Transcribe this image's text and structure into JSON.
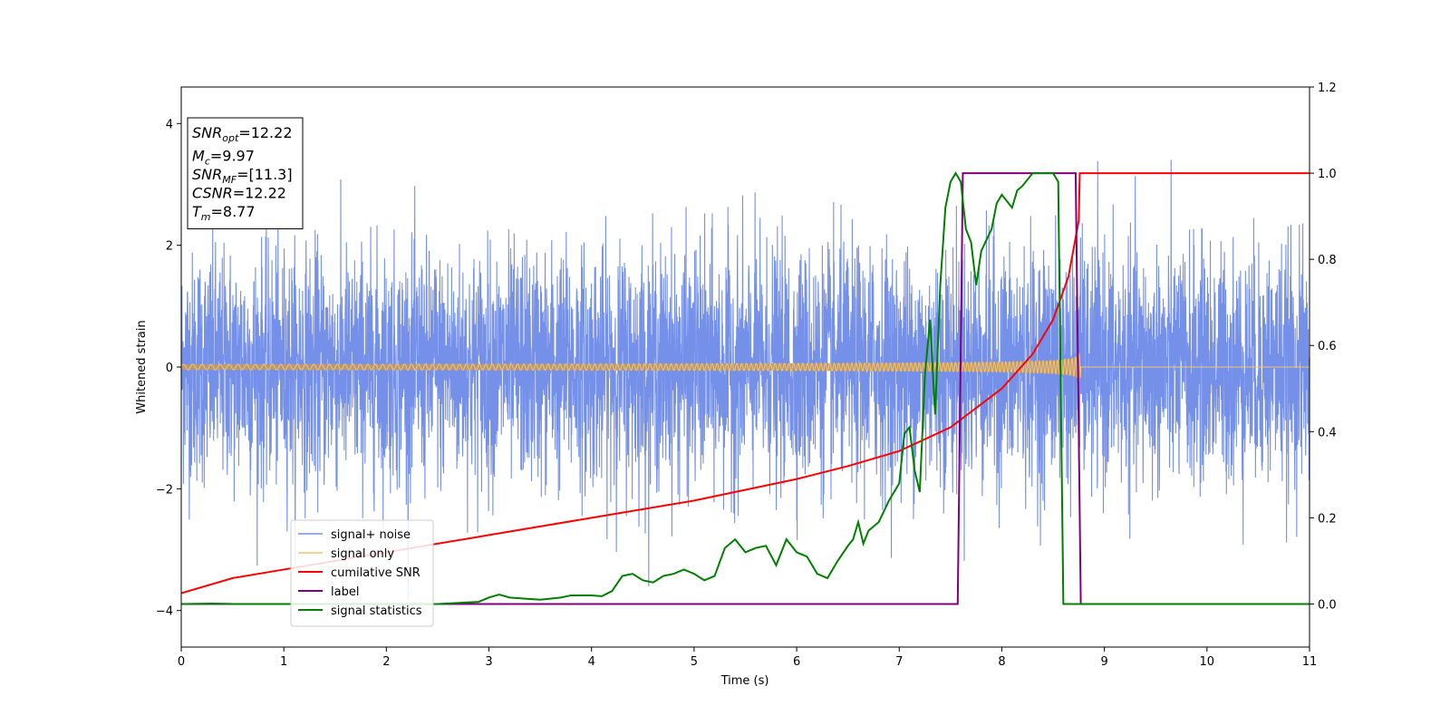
{
  "chart_data": {
    "type": "line",
    "xlabel": "Time (s)",
    "ylabel": "Whitened strain",
    "xlim": [
      0,
      11
    ],
    "ylim": [
      -4.6,
      4.6
    ],
    "y2lim": [
      -0.1,
      1.2
    ],
    "x_ticks": [
      "0",
      "1",
      "2",
      "3",
      "4",
      "5",
      "6",
      "7",
      "8",
      "9",
      "10",
      "11"
    ],
    "y_ticks": [
      "4",
      "2",
      "0",
      "−2",
      "−4"
    ],
    "y2_ticks": [
      "1.2",
      "1.0",
      "0.8",
      "0.6",
      "0.4",
      "0.2",
      "0.0"
    ],
    "grid": false,
    "legend_position": "lower-left",
    "annotation_lines": [
      {
        "base": "SNR",
        "sub": "opt",
        "value": "=12.22"
      },
      {
        "base": "M",
        "sub": "c",
        "value": "=9.97"
      },
      {
        "base": "SNR",
        "sub": "MF",
        "value": "=[11.3]"
      },
      {
        "base": "CSNR",
        "sub": "",
        "value": "=12.22"
      },
      {
        "base": "T",
        "sub": "m",
        "value": "=8.77"
      }
    ],
    "series": [
      {
        "name": "signal+ noise",
        "color": "#7590e8",
        "axis": "left",
        "kind": "noise",
        "noise_std": 0.95,
        "noise_max_abs": 4.2,
        "x_range": [
          0,
          11
        ]
      },
      {
        "name": "signal only",
        "color": "#f5c36e",
        "axis": "left",
        "kind": "chirp",
        "merger_time": 8.77,
        "amplitude_start": 0.04,
        "amplitude_at_merger": 1.0,
        "overlap_color": "#b89a76"
      },
      {
        "name": "cumilative SNR",
        "color": "#ff0000",
        "axis": "right",
        "x": [
          0,
          0.5,
          1,
          2,
          3,
          4,
          5,
          6,
          6.5,
          7,
          7.5,
          8,
          8.3,
          8.5,
          8.65,
          8.75,
          8.76,
          11
        ],
        "y": [
          0.025,
          0.06,
          0.08,
          0.12,
          0.16,
          0.2,
          0.24,
          0.29,
          0.32,
          0.355,
          0.41,
          0.5,
          0.58,
          0.66,
          0.76,
          0.89,
          1.0,
          1.0
        ]
      },
      {
        "name": "label",
        "color": "#800080",
        "axis": "right",
        "x": [
          0,
          7.57,
          7.62,
          8.72,
          8.77,
          11
        ],
        "y": [
          0,
          0,
          1,
          1,
          0,
          0
        ]
      },
      {
        "name": "signal statistics",
        "color": "#008000",
        "axis": "right",
        "x": [
          0,
          0.3,
          0.5,
          1,
          2,
          2.5,
          2.9,
          3.0,
          3.1,
          3.2,
          3.5,
          3.7,
          3.8,
          4.0,
          4.1,
          4.2,
          4.3,
          4.4,
          4.5,
          4.6,
          4.7,
          4.8,
          4.9,
          5.0,
          5.1,
          5.2,
          5.3,
          5.4,
          5.5,
          5.6,
          5.7,
          5.8,
          5.9,
          6.0,
          6.1,
          6.2,
          6.3,
          6.4,
          6.5,
          6.55,
          6.6,
          6.65,
          6.7,
          6.8,
          6.9,
          7.0,
          7.05,
          7.1,
          7.15,
          7.2,
          7.25,
          7.3,
          7.35,
          7.4,
          7.45,
          7.5,
          7.55,
          7.6,
          7.65,
          7.7,
          7.75,
          7.8,
          7.9,
          7.95,
          8.0,
          8.1,
          8.15,
          8.2,
          8.3,
          8.5,
          8.55,
          8.6,
          8.7,
          8.72,
          8.74,
          8.76,
          8.8,
          8.82,
          9,
          11
        ],
        "y": [
          0,
          0.001,
          0.0,
          0.0,
          0.0,
          0.0,
          0.005,
          0.015,
          0.022,
          0.015,
          0.01,
          0.015,
          0.02,
          0.02,
          0.018,
          0.03,
          0.065,
          0.07,
          0.055,
          0.05,
          0.065,
          0.07,
          0.08,
          0.07,
          0.055,
          0.065,
          0.13,
          0.15,
          0.12,
          0.13,
          0.135,
          0.09,
          0.15,
          0.12,
          0.11,
          0.07,
          0.06,
          0.1,
          0.135,
          0.15,
          0.19,
          0.14,
          0.17,
          0.19,
          0.24,
          0.28,
          0.395,
          0.41,
          0.31,
          0.26,
          0.53,
          0.66,
          0.44,
          0.74,
          0.92,
          0.98,
          1.0,
          0.98,
          0.87,
          0.84,
          0.74,
          0.82,
          0.87,
          0.93,
          0.95,
          0.92,
          0.96,
          0.97,
          1.0,
          1.0,
          0.98,
          0.0,
          0.0,
          0.0,
          0.0,
          0.0,
          0.0,
          0.0,
          0.0,
          0.0
        ]
      }
    ]
  }
}
